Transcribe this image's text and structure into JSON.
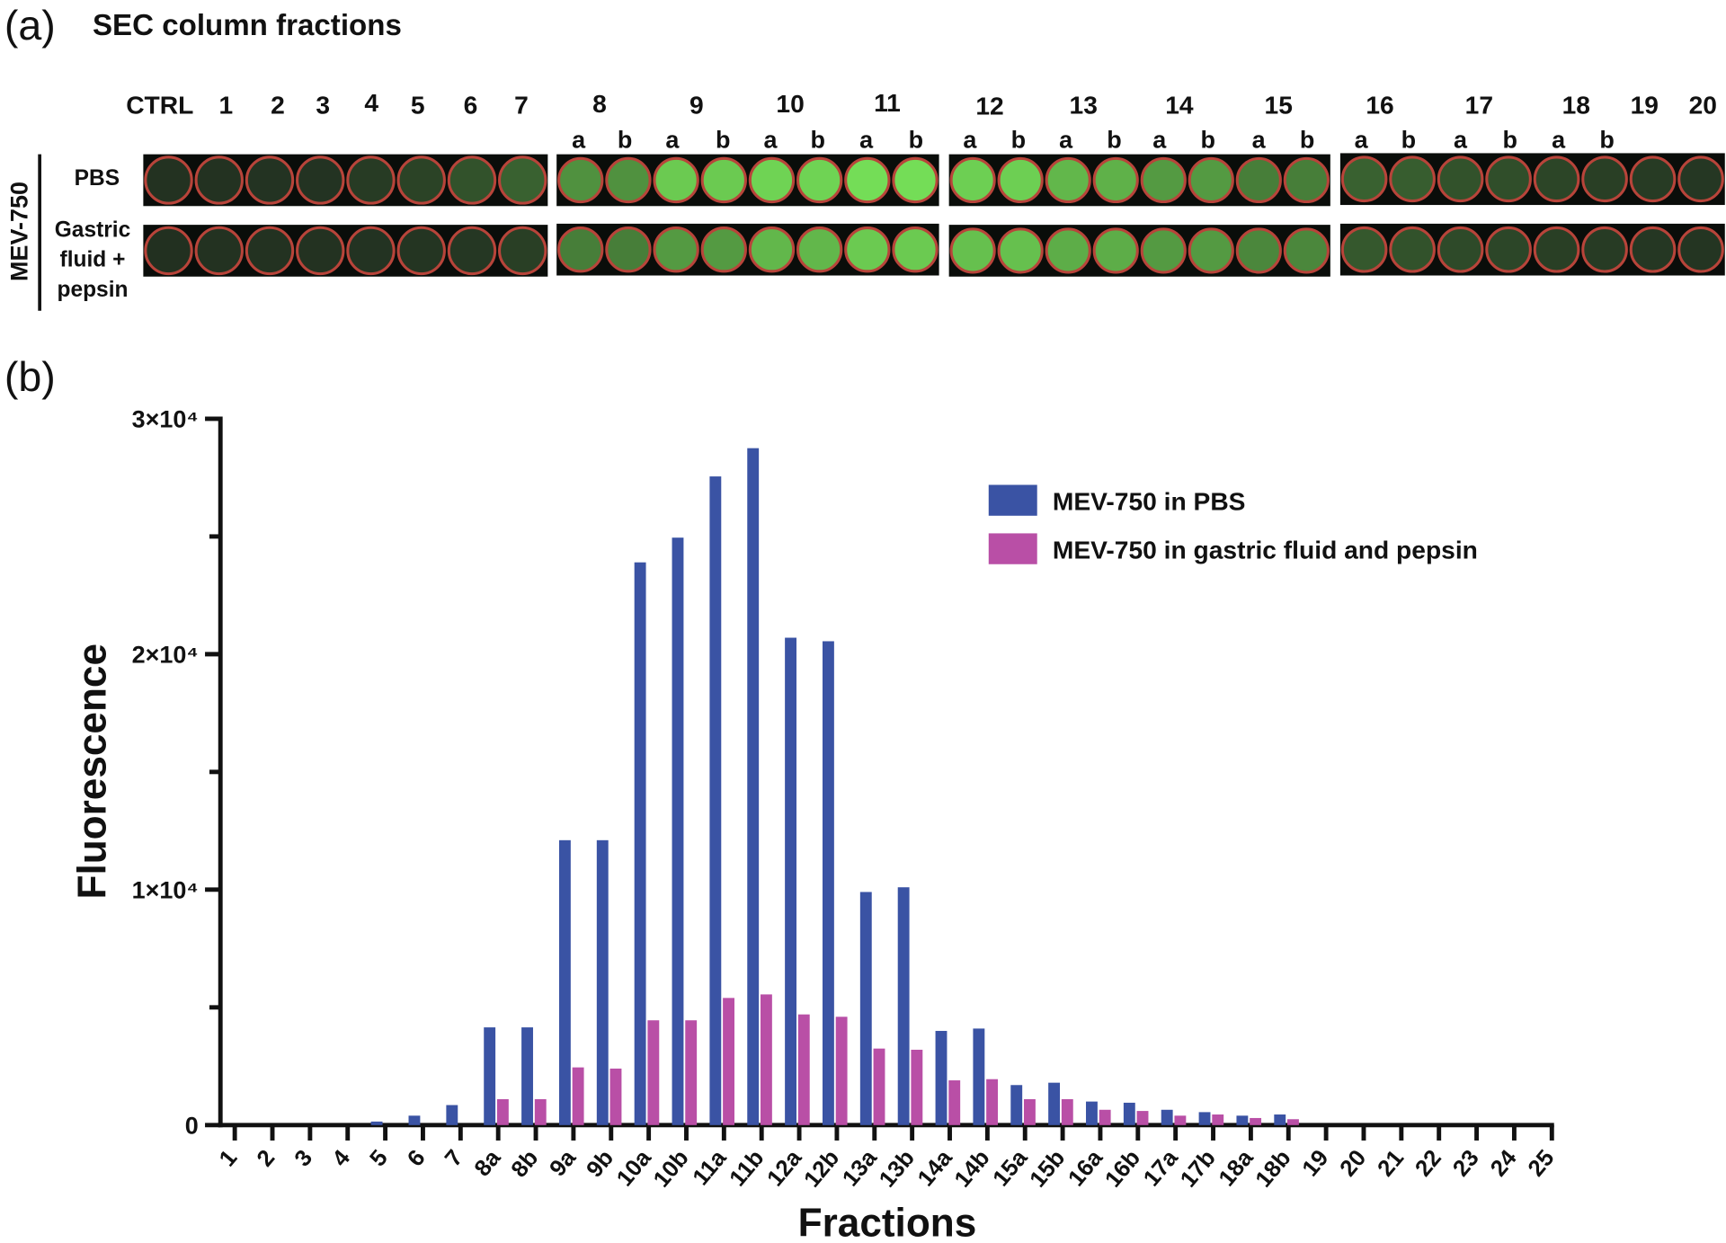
{
  "panel_a": {
    "label": "(a)",
    "title": "SEC column fractions",
    "columns": [
      "CTRL",
      "1",
      "2",
      "3",
      "4",
      "5",
      "6",
      "7",
      "8",
      "9",
      "10",
      "11",
      "12",
      "13",
      "14",
      "15",
      "16",
      "17",
      "18",
      "19",
      "20"
    ],
    "well_letters": [
      "a",
      "b",
      "a",
      "b",
      "a",
      "b",
      "a",
      "b",
      "a",
      "b",
      "a",
      "b",
      "a",
      "b",
      "a",
      "b",
      "a",
      "b",
      "a",
      "b",
      "a",
      "b"
    ],
    "row_group": "MEV-750",
    "rows": [
      "PBS",
      [
        "Gastric",
        "fluid +",
        "pepsin"
      ]
    ]
  },
  "panel_b_label": "(b)",
  "chart_data": {
    "type": "bar",
    "ylabel": "Fluorescence",
    "xlabel": "Fractions",
    "categories": [
      "1",
      "2",
      "3",
      "4",
      "5",
      "6",
      "7",
      "8a",
      "8b",
      "9a",
      "9b",
      "10a",
      "10b",
      "11a",
      "11b",
      "12a",
      "12b",
      "13a",
      "13b",
      "14a",
      "14b",
      "15a",
      "15b",
      "16a",
      "16b",
      "17a",
      "17b",
      "18a",
      "18b",
      "19",
      "20",
      "21",
      "22",
      "23",
      "24",
      "25"
    ],
    "series": [
      {
        "name": "MEV-750 in PBS",
        "color": "#3a53a4",
        "values": [
          0,
          0,
          0,
          0,
          150,
          400,
          850,
          4150,
          4150,
          12100,
          12100,
          23900,
          24950,
          27550,
          28750,
          20700,
          20550,
          9900,
          10100,
          4000,
          4100,
          1700,
          1800,
          1000,
          950,
          650,
          550,
          400,
          450,
          0,
          0,
          0,
          0,
          0,
          0,
          0
        ]
      },
      {
        "name": "MEV-750 in gastric fluid and pepsin",
        "color": "#b94fa6",
        "values": [
          0,
          0,
          0,
          0,
          0,
          0,
          0,
          1100,
          1100,
          2450,
          2400,
          4450,
          4450,
          5400,
          5550,
          4700,
          4600,
          3250,
          3200,
          1900,
          1950,
          1100,
          1100,
          650,
          600,
          400,
          450,
          300,
          250,
          0,
          0,
          0,
          0,
          0,
          0,
          0
        ]
      }
    ],
    "ylim": [
      0,
      30000
    ],
    "yticks": [
      0,
      {
        "value": 10000,
        "label": "1×10⁴"
      },
      {
        "value": 20000,
        "label": "2×10⁴"
      },
      {
        "value": 30000,
        "label": "3×10⁴"
      }
    ],
    "yminorticks": [
      5000,
      15000,
      25000
    ],
    "legend": "top-right",
    "grid": false
  }
}
